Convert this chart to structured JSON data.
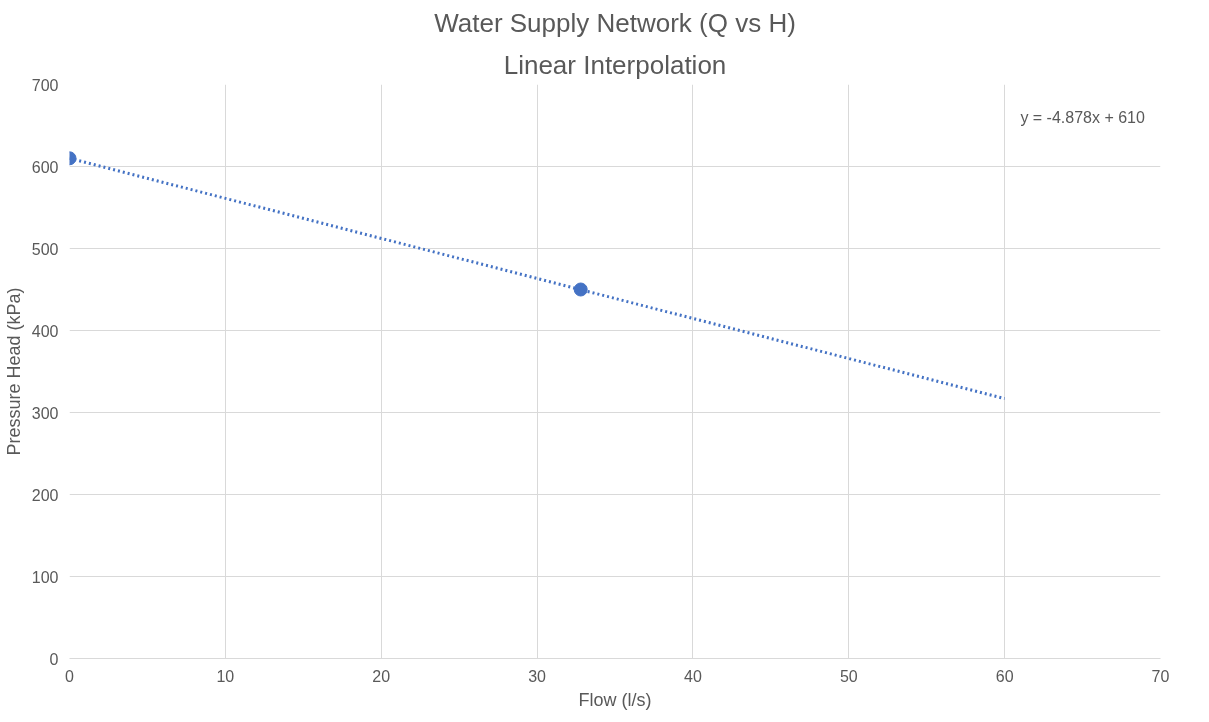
{
  "chart_data": {
    "type": "scatter",
    "title": "Water Supply Network (Q vs H)",
    "subtitle": "Linear Interpolation",
    "xlabel": "Flow (l/s)",
    "ylabel": "Pressure Head (kPa)",
    "xlim": [
      0,
      70
    ],
    "xticks": [
      0,
      10,
      20,
      30,
      40,
      50,
      60,
      70
    ],
    "ylim": [
      0,
      700
    ],
    "yticks": [
      0,
      100,
      200,
      300,
      400,
      500,
      600,
      700
    ],
    "grid": true,
    "series": [
      {
        "color": "#4472c4",
        "x": [
          0,
          32.8
        ],
        "values": [
          610,
          450
        ],
        "marker": "circle"
      },
      {
        "type": "line",
        "color": "#4472c4",
        "x": [
          0,
          60
        ],
        "values": [
          610,
          317
        ],
        "marker": "none",
        "line_style": "dotted"
      }
    ],
    "annotations": [
      "y = -4.878x + 610"
    ]
  }
}
